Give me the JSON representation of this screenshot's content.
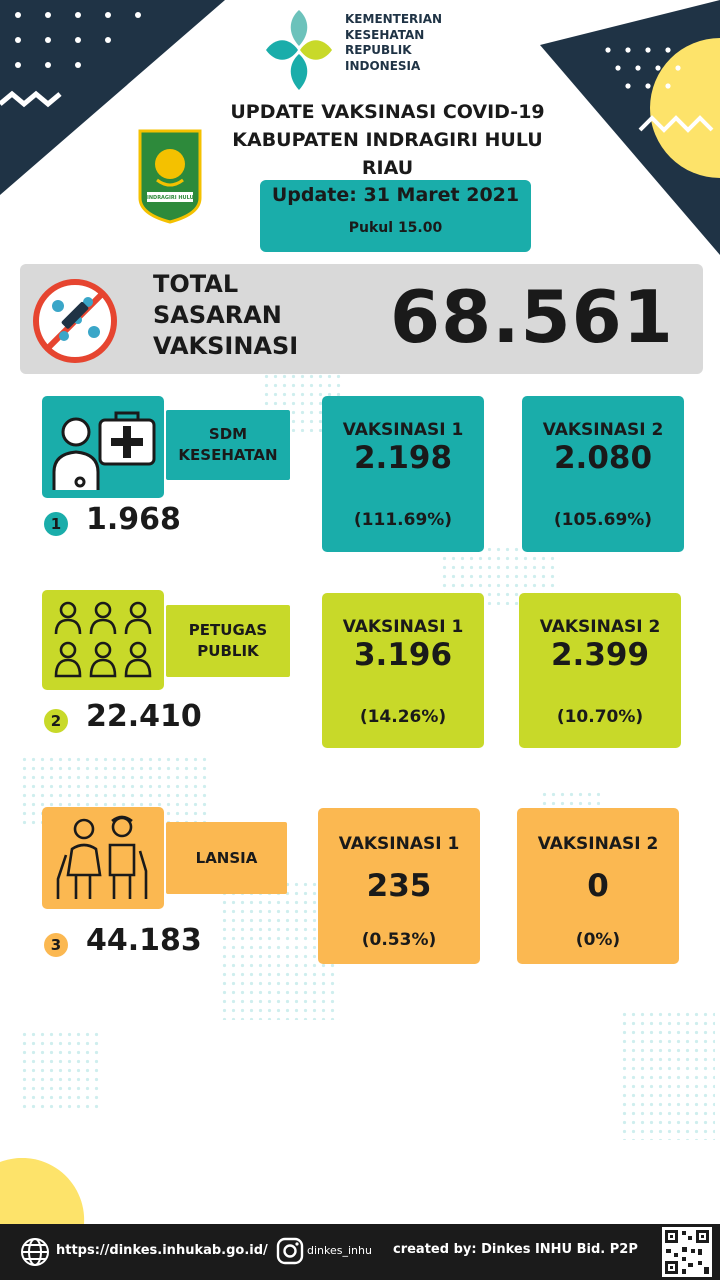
{
  "header": {
    "ministry_lines": [
      "KEMENTERIAN",
      "KESEHATAN",
      "REPUBLIK",
      "INDONESIA"
    ],
    "title_lines": [
      "UPDATE VAKSINASI COVID-19",
      "KABUPATEN INDRAGIRI HULU",
      "RIAU"
    ],
    "update_date": "Update: 31 Maret 2021",
    "update_time": "Pukul 15.00",
    "emblem_text": "INDRAGIRI HULU"
  },
  "total": {
    "label_lines": [
      "TOTAL",
      "SASARAN",
      "VAKSINASI"
    ],
    "value": "68.561"
  },
  "groups": [
    {
      "number": "1",
      "label_lines": [
        "SDM",
        "KESEHATAN"
      ],
      "target": "1.968",
      "icon": "health-worker-icon",
      "dose1": {
        "title": "VAKSINASI 1",
        "value": "2.198",
        "percent": "(111.69%)"
      },
      "dose2": {
        "title": "VAKSINASI 2",
        "value": "2.080",
        "percent": "(105.69%)"
      }
    },
    {
      "number": "2",
      "label_lines": [
        "PETUGAS",
        "PUBLIK"
      ],
      "target": "22.410",
      "icon": "public-officers-icon",
      "dose1": {
        "title": "VAKSINASI 1",
        "value": "3.196",
        "percent": "(14.26%)"
      },
      "dose2": {
        "title": "VAKSINASI 2",
        "value": "2.399",
        "percent": "(10.70%)"
      }
    },
    {
      "number": "3",
      "label_lines": [
        "LANSIA"
      ],
      "target": "44.183",
      "icon": "elderly-couple-icon",
      "dose1": {
        "title": "VAKSINASI 1",
        "value": "235",
        "percent": "(0.53%)"
      },
      "dose2": {
        "title": "VAKSINASI 2",
        "value": "0",
        "percent": "(0%)"
      }
    }
  ],
  "footer": {
    "website": "https://dinkes.inhukab.go.id/",
    "instagram": "dinkes_inhu",
    "credit": "created by: Dinkes INHU Bid. P2P"
  },
  "colors": {
    "teal": "#1aadaa",
    "lime": "#c8d929",
    "orange": "#fbb851",
    "navy": "#1f3345",
    "yellow": "#fde36a"
  }
}
